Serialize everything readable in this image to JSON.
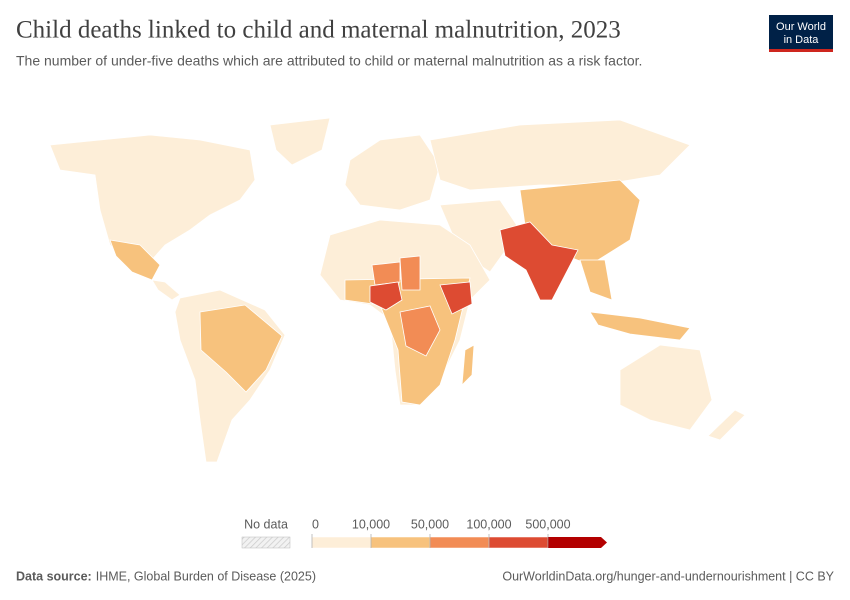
{
  "header": {
    "title": "Child deaths linked to child and maternal malnutrition, 2023",
    "subtitle": "The number of under-five deaths which are attributed to child or maternal malnutrition as a risk factor.",
    "logo": [
      "Our World",
      "in Data"
    ]
  },
  "legend": {
    "no_data_label": "No data",
    "ticks": [
      0,
      {
        "value": 10000,
        "label": "10,000"
      },
      {
        "value": 50000,
        "label": "50,000"
      },
      {
        "value": 100000,
        "label": "100,000"
      },
      {
        "value": 500000,
        "label": "500,000"
      }
    ],
    "colors": [
      "#fdeed8",
      "#f7c27d",
      "#f28c55",
      "#dd4b32",
      "#b30000"
    ]
  },
  "footer": {
    "source_label": "Data source:",
    "source": "IHME, Global Burden of Disease (2025)",
    "url": "OurWorldinData.org/hunger-and-undernourishment | CC BY"
  }
}
